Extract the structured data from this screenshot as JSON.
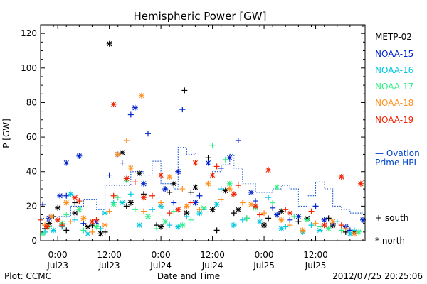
{
  "chart_data": {
    "type": "scatter",
    "title": "Hemispheric Power [GW]",
    "ylabel": "P [GW]",
    "xlabel": "Date and Time",
    "ylim": [
      0,
      125
    ],
    "xlim": [
      "2012-07-22 20:00",
      "2012-07-25 23:30"
    ],
    "yticks": [
      0,
      20,
      40,
      60,
      80,
      100,
      120
    ],
    "xticks": [
      {
        "line1": "0:00",
        "line2": "Jul23",
        "t": "2012-07-23 00:00"
      },
      {
        "line1": "12:00",
        "line2": "Jul23",
        "t": "2012-07-23 12:00"
      },
      {
        "line1": "0:00",
        "line2": "Jul24",
        "t": "2012-07-24 00:00"
      },
      {
        "line1": "12:00",
        "line2": "Jul24",
        "t": "2012-07-24 12:00"
      },
      {
        "line1": "0:00",
        "line2": "Jul25",
        "t": "2012-07-25 00:00"
      },
      {
        "line1": "12:00",
        "line2": "Jul25",
        "t": "2012-07-25 12:00"
      }
    ],
    "legend": {
      "placement": "right",
      "series_labels": [
        "METP-02",
        "NOAA-15",
        "NOAA-16",
        "NOAA-17",
        "NOAA-18",
        "NOAA-19"
      ],
      "ovation_line1": "— Ovation",
      "ovation_line2": "Prime HPI",
      "south_label": "+ south",
      "north_label": "* north"
    },
    "series": [
      {
        "name": "METP-02",
        "color": "#000000",
        "south": [
          [
            "2012-07-22 21:00",
            7
          ],
          [
            "2012-07-22 23:00",
            14
          ],
          [
            "2012-07-23 02:00",
            6
          ],
          [
            "2012-07-23 04:00",
            22
          ],
          [
            "2012-07-23 08:00",
            9
          ],
          [
            "2012-07-23 11:00",
            5
          ],
          [
            "2012-07-23 16:00",
            20
          ],
          [
            "2012-07-23 20:00",
            27
          ],
          [
            "2012-07-23 23:00",
            9
          ],
          [
            "2012-07-24 02:00",
            28
          ],
          [
            "2012-07-24 05:30",
            87
          ],
          [
            "2012-07-24 07:00",
            28
          ],
          [
            "2012-07-24 11:00",
            48
          ],
          [
            "2012-07-24 13:00",
            6
          ],
          [
            "2012-07-24 17:00",
            16
          ],
          [
            "2012-07-24 20:00",
            13
          ],
          [
            "2012-07-25 01:00",
            13
          ],
          [
            "2012-07-25 08:00",
            11
          ],
          [
            "2012-07-25 15:00",
            13
          ],
          [
            "2012-07-25 19:00",
            5
          ]
        ],
        "north": [
          [
            "2012-07-22 22:00",
            10
          ],
          [
            "2012-07-23 00:00",
            19
          ],
          [
            "2012-07-23 04:00",
            16
          ],
          [
            "2012-07-23 07:00",
            8
          ],
          [
            "2012-07-23 10:00",
            4
          ],
          [
            "2012-07-23 12:00",
            114
          ],
          [
            "2012-07-23 15:00",
            51
          ],
          [
            "2012-07-23 17:00",
            22
          ],
          [
            "2012-07-23 19:00",
            39
          ],
          [
            "2012-07-24 00:00",
            8
          ],
          [
            "2012-07-24 03:00",
            33
          ],
          [
            "2012-07-24 06:00",
            16
          ],
          [
            "2012-07-24 08:00",
            31
          ],
          [
            "2012-07-24 12:00",
            18
          ],
          [
            "2012-07-24 15:00",
            29
          ],
          [
            "2012-07-24 18:00",
            18
          ],
          [
            "2012-07-25 00:00",
            9
          ],
          [
            "2012-07-25 04:00",
            17
          ],
          [
            "2012-07-25 10:00",
            13
          ],
          [
            "2012-07-25 16:00",
            9
          ],
          [
            "2012-07-25 21:00",
            5
          ]
        ]
      },
      {
        "name": "NOAA-15",
        "color": "#0022cc",
        "south": [
          [
            "2012-07-22 20:30",
            21
          ],
          [
            "2012-07-23 02:00",
            26
          ],
          [
            "2012-07-23 06:00",
            10
          ],
          [
            "2012-07-23 12:00",
            38
          ],
          [
            "2012-07-23 15:00",
            45
          ],
          [
            "2012-07-23 17:00",
            73
          ],
          [
            "2012-07-23 21:00",
            62
          ],
          [
            "2012-07-24 03:00",
            22
          ],
          [
            "2012-07-24 05:00",
            76
          ],
          [
            "2012-07-24 09:00",
            26
          ],
          [
            "2012-07-24 14:00",
            42
          ],
          [
            "2012-07-24 18:00",
            58
          ],
          [
            "2012-07-24 22:00",
            23
          ],
          [
            "2012-07-25 02:00",
            19
          ],
          [
            "2012-07-25 06:00",
            12
          ],
          [
            "2012-07-25 12:00",
            20
          ],
          [
            "2012-07-25 16:00",
            10
          ],
          [
            "2012-07-25 20:00",
            6
          ]
        ],
        "north": [
          [
            "2012-07-22 22:00",
            13
          ],
          [
            "2012-07-23 00:30",
            26
          ],
          [
            "2012-07-23 02:00",
            45
          ],
          [
            "2012-07-23 05:00",
            49
          ],
          [
            "2012-07-23 09:00",
            11
          ],
          [
            "2012-07-23 14:00",
            50
          ],
          [
            "2012-07-23 18:00",
            77
          ],
          [
            "2012-07-23 20:00",
            33
          ],
          [
            "2012-07-24 01:00",
            30
          ],
          [
            "2012-07-24 04:00",
            40
          ],
          [
            "2012-07-24 08:00",
            22
          ],
          [
            "2012-07-24 11:00",
            45
          ],
          [
            "2012-07-24 16:00",
            48
          ],
          [
            "2012-07-24 21:00",
            28
          ],
          [
            "2012-07-25 03:00",
            15
          ],
          [
            "2012-07-25 08:00",
            14
          ],
          [
            "2012-07-25 14:00",
            12
          ],
          [
            "2012-07-25 19:00",
            8
          ],
          [
            "2012-07-25 23:00",
            12
          ]
        ]
      },
      {
        "name": "NOAA-16",
        "color": "#00c8e0",
        "south": [
          [
            "2012-07-22 21:00",
            5
          ],
          [
            "2012-07-23 01:00",
            8
          ],
          [
            "2012-07-23 04:00",
            12
          ],
          [
            "2012-07-23 10:00",
            7
          ],
          [
            "2012-07-23 13:00",
            22
          ],
          [
            "2012-07-23 17:00",
            27
          ],
          [
            "2012-07-23 22:00",
            18
          ],
          [
            "2012-07-24 02:00",
            9
          ],
          [
            "2012-07-24 06:00",
            14
          ],
          [
            "2012-07-24 10:00",
            18
          ],
          [
            "2012-07-24 14:00",
            30
          ],
          [
            "2012-07-24 19:00",
            12
          ],
          [
            "2012-07-25 01:00",
            25
          ],
          [
            "2012-07-25 05:00",
            8
          ],
          [
            "2012-07-25 11:00",
            9
          ],
          [
            "2012-07-25 17:00",
            11
          ],
          [
            "2012-07-25 21:00",
            6
          ]
        ],
        "north": [
          [
            "2012-07-22 23:00",
            6
          ],
          [
            "2012-07-23 03:00",
            27
          ],
          [
            "2012-07-23 07:00",
            4
          ],
          [
            "2012-07-23 11:00",
            16
          ],
          [
            "2012-07-23 15:00",
            22
          ],
          [
            "2012-07-23 19:00",
            9
          ],
          [
            "2012-07-24 00:00",
            20
          ],
          [
            "2012-07-24 04:00",
            8
          ],
          [
            "2012-07-24 09:00",
            16
          ],
          [
            "2012-07-24 13:00",
            21
          ],
          [
            "2012-07-24 17:00",
            9
          ],
          [
            "2012-07-24 23:00",
            11
          ],
          [
            "2012-07-25 04:00",
            7
          ],
          [
            "2012-07-25 09:00",
            5
          ],
          [
            "2012-07-25 13:00",
            6
          ],
          [
            "2012-07-25 20:00",
            4
          ]
        ]
      },
      {
        "name": "NOAA-17",
        "color": "#33ee88",
        "south": [
          [
            "2012-07-22 22:00",
            8
          ],
          [
            "2012-07-23 02:00",
            15
          ],
          [
            "2012-07-23 06:00",
            6
          ],
          [
            "2012-07-23 14:00",
            25
          ],
          [
            "2012-07-23 18:00",
            18
          ],
          [
            "2012-07-23 23:00",
            7
          ],
          [
            "2012-07-24 03:00",
            17
          ],
          [
            "2012-07-24 07:00",
            12
          ],
          [
            "2012-07-24 12:00",
            55
          ],
          [
            "2012-07-24 15:00",
            47
          ],
          [
            "2012-07-24 20:00",
            13
          ],
          [
            "2012-07-25 02:00",
            22
          ],
          [
            "2012-07-25 07:00",
            14
          ],
          [
            "2012-07-25 13:00",
            8
          ],
          [
            "2012-07-25 18:00",
            6
          ]
        ],
        "north": [
          [
            "2012-07-22 20:30",
            4
          ],
          [
            "2012-07-23 01:00",
            10
          ],
          [
            "2012-07-23 05:00",
            18
          ],
          [
            "2012-07-23 09:00",
            8
          ],
          [
            "2012-07-23 13:00",
            21
          ],
          [
            "2012-07-23 16:00",
            35
          ],
          [
            "2012-07-23 21:00",
            14
          ],
          [
            "2012-07-24 01:00",
            11
          ],
          [
            "2012-07-24 05:00",
            9
          ],
          [
            "2012-07-24 10:00",
            19
          ],
          [
            "2012-07-24 16:00",
            33
          ],
          [
            "2012-07-24 22:00",
            19
          ],
          [
            "2012-07-25 03:00",
            31
          ],
          [
            "2012-07-25 10:00",
            12
          ],
          [
            "2012-07-25 15:00",
            7
          ],
          [
            "2012-07-25 22:00",
            5
          ]
        ]
      },
      {
        "name": "NOAA-18",
        "color": "#ff9020",
        "south": [
          [
            "2012-07-22 21:00",
            9
          ],
          [
            "2012-07-23 03:00",
            11
          ],
          [
            "2012-07-23 08:00",
            5
          ],
          [
            "2012-07-23 12:00",
            17
          ],
          [
            "2012-07-23 16:00",
            58
          ],
          [
            "2012-07-23 20:00",
            17
          ],
          [
            "2012-07-24 00:00",
            22
          ],
          [
            "2012-07-24 05:00",
            30
          ],
          [
            "2012-07-24 09:00",
            18
          ],
          [
            "2012-07-24 14:00",
            24
          ],
          [
            "2012-07-24 19:00",
            22
          ],
          [
            "2012-07-25 00:00",
            16
          ],
          [
            "2012-07-25 06:00",
            9
          ],
          [
            "2012-07-25 12:00",
            10
          ],
          [
            "2012-07-25 19:00",
            7
          ]
        ],
        "north": [
          [
            "2012-07-22 22:30",
            14
          ],
          [
            "2012-07-23 02:00",
            22
          ],
          [
            "2012-07-23 06:00",
            13
          ],
          [
            "2012-07-23 11:00",
            9
          ],
          [
            "2012-07-23 14:00",
            50
          ],
          [
            "2012-07-23 17:00",
            42
          ],
          [
            "2012-07-23 19:30",
            84
          ],
          [
            "2012-07-24 02:00",
            37
          ],
          [
            "2012-07-24 06:00",
            20
          ],
          [
            "2012-07-24 11:00",
            33
          ],
          [
            "2012-07-24 16:00",
            30
          ],
          [
            "2012-07-24 21:00",
            21
          ],
          [
            "2012-07-25 04:00",
            12
          ],
          [
            "2012-07-25 09:00",
            6
          ],
          [
            "2012-07-25 16:00",
            11
          ],
          [
            "2012-07-25 21:00",
            4
          ]
        ]
      },
      {
        "name": "NOAA-19",
        "color": "#ee2200",
        "south": [
          [
            "2012-07-22 20:00",
            12
          ],
          [
            "2012-07-23 01:00",
            9
          ],
          [
            "2012-07-23 05:00",
            23
          ],
          [
            "2012-07-23 09:00",
            12
          ],
          [
            "2012-07-23 13:00",
            26
          ],
          [
            "2012-07-23 18:00",
            34
          ],
          [
            "2012-07-23 22:00",
            26
          ],
          [
            "2012-07-24 02:00",
            16
          ],
          [
            "2012-07-24 07:00",
            22
          ],
          [
            "2012-07-24 13:00",
            43
          ],
          [
            "2012-07-24 18:00",
            32
          ],
          [
            "2012-07-24 23:00",
            15
          ],
          [
            "2012-07-25 05:00",
            18
          ],
          [
            "2012-07-25 11:00",
            17
          ],
          [
            "2012-07-25 18:00",
            9
          ]
        ],
        "north": [
          [
            "2012-07-22 21:30",
            8
          ],
          [
            "2012-07-23 00:00",
            12
          ],
          [
            "2012-07-23 04:00",
            25
          ],
          [
            "2012-07-23 08:00",
            11
          ],
          [
            "2012-07-23 13:00",
            79
          ],
          [
            "2012-07-23 16:00",
            36
          ],
          [
            "2012-07-23 20:00",
            25
          ],
          [
            "2012-07-24 00:00",
            38
          ],
          [
            "2012-07-24 04:00",
            18
          ],
          [
            "2012-07-24 08:00",
            45
          ],
          [
            "2012-07-24 12:00",
            38
          ],
          [
            "2012-07-24 17:00",
            27
          ],
          [
            "2012-07-24 22:00",
            20
          ],
          [
            "2012-07-25 01:00",
            41
          ],
          [
            "2012-07-25 06:00",
            16
          ],
          [
            "2012-07-25 14:00",
            9
          ],
          [
            "2012-07-25 18:00",
            37
          ],
          [
            "2012-07-25 22:30",
            33
          ]
        ]
      }
    ],
    "ovation": {
      "name": "Ovation Prime HPI",
      "color": "#0044cc",
      "points": [
        [
          "2012-07-22 20:00",
          13
        ],
        [
          "2012-07-23 00:00",
          14
        ],
        [
          "2012-07-23 03:00",
          20
        ],
        [
          "2012-07-23 06:00",
          24
        ],
        [
          "2012-07-23 09:00",
          18
        ],
        [
          "2012-07-23 11:00",
          32
        ],
        [
          "2012-07-23 14:00",
          32
        ],
        [
          "2012-07-23 17:00",
          40
        ],
        [
          "2012-07-23 20:00",
          38
        ],
        [
          "2012-07-23 22:00",
          46
        ],
        [
          "2012-07-24 00:00",
          33
        ],
        [
          "2012-07-24 03:00",
          30
        ],
        [
          "2012-07-24 04:00",
          54
        ],
        [
          "2012-07-24 06:00",
          50
        ],
        [
          "2012-07-24 08:00",
          52
        ],
        [
          "2012-07-24 10:00",
          38
        ],
        [
          "2012-07-24 12:00",
          40
        ],
        [
          "2012-07-24 14:00",
          44
        ],
        [
          "2012-07-24 16:00",
          50
        ],
        [
          "2012-07-24 17:00",
          42
        ],
        [
          "2012-07-24 19:00",
          33
        ],
        [
          "2012-07-24 22:00",
          28
        ],
        [
          "2012-07-25 00:00",
          28
        ],
        [
          "2012-07-25 02:00",
          30
        ],
        [
          "2012-07-25 04:00",
          32
        ],
        [
          "2012-07-25 06:00",
          30
        ],
        [
          "2012-07-25 08:00",
          20
        ],
        [
          "2012-07-25 10:00",
          26
        ],
        [
          "2012-07-25 12:00",
          34
        ],
        [
          "2012-07-25 14:00",
          30
        ],
        [
          "2012-07-25 16:00",
          20
        ],
        [
          "2012-07-25 18:00",
          18
        ],
        [
          "2012-07-25 20:00",
          16
        ],
        [
          "2012-07-25 23:00",
          16
        ]
      ]
    },
    "footer": {
      "left": "Plot: CCMC",
      "right": "2012/07/25 20:25:06"
    }
  }
}
